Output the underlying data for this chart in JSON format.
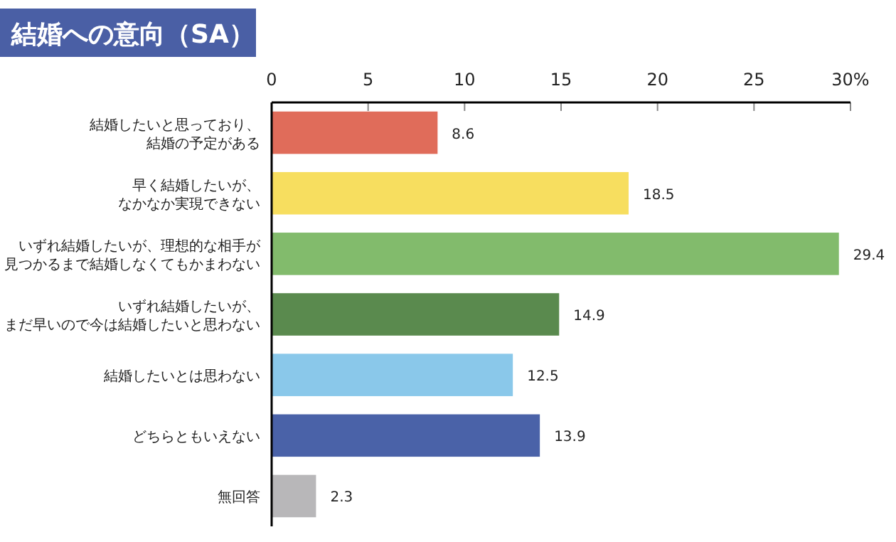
{
  "chart_data": {
    "type": "bar",
    "orientation": "horizontal",
    "title": "結婚への意向（SA）",
    "categories": [
      "結婚したいと思っており、結婚の予定がある",
      "早く結婚したいが、なかなか実現できない",
      "いずれ結婚したいが、理想的な相手が見つかるまで結婚しなくてもかまわない",
      "いずれ結婚したいが、まだ早いので今は結婚したいと思わない",
      "結婚したいとは思わない",
      "どちらともいえない",
      "無回答"
    ],
    "values": [
      8.6,
      18.5,
      29.4,
      14.9,
      12.5,
      13.9,
      2.3
    ],
    "colors": [
      "#e06c5a",
      "#f7de5f",
      "#82bb6c",
      "#5a8a4e",
      "#8ac8ea",
      "#4a62a8",
      "#b8b7b9"
    ],
    "xlim": [
      0,
      30
    ],
    "xticks": [
      0,
      5,
      10,
      15,
      20,
      25,
      {
        "value": 30,
        "label": "30%"
      }
    ],
    "data_labels": true,
    "grid": false
  }
}
